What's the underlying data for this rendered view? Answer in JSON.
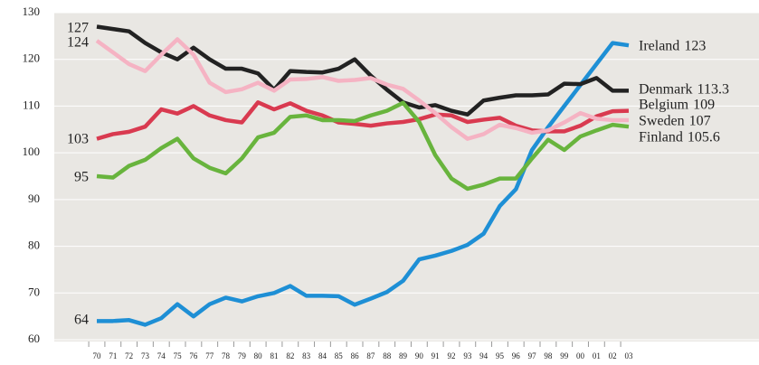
{
  "chart_data": {
    "type": "line",
    "categories": [
      "70",
      "71",
      "72",
      "73",
      "74",
      "75",
      "76",
      "77",
      "78",
      "79",
      "80",
      "81",
      "82",
      "83",
      "84",
      "85",
      "86",
      "87",
      "88",
      "89",
      "90",
      "91",
      "92",
      "93",
      "94",
      "95",
      "96",
      "97",
      "98",
      "99",
      "00",
      "01",
      "02",
      "03"
    ],
    "ylim": [
      60,
      130
    ],
    "yticks": [
      60,
      70,
      80,
      90,
      100,
      110,
      120,
      130
    ],
    "grid": true,
    "series": [
      {
        "name": "Ireland",
        "color": "#1e8fd5",
        "values": [
          64,
          64,
          64.2,
          63.2,
          64.6,
          67.6,
          65,
          67.6,
          69,
          68.2,
          69.3,
          70,
          71.5,
          69.4,
          69.4,
          69.3,
          67.5,
          68.8,
          70.2,
          72.6,
          77.2,
          78,
          79,
          80.3,
          82.7,
          88.6,
          92.2,
          100.6,
          105.5,
          110,
          114.5,
          119,
          123.5,
          123
        ]
      },
      {
        "name": "Denmark",
        "color": "#222222",
        "values": [
          127,
          126.5,
          126,
          123.5,
          121.5,
          120,
          122.5,
          120,
          118,
          118,
          117,
          113.5,
          117.5,
          117.3,
          117.2,
          118,
          120,
          116.5,
          113.5,
          110.8,
          109.7,
          110.2,
          109,
          108.2,
          111.2,
          111.8,
          112.3,
          112.3,
          112.5,
          114.8,
          114.7,
          116,
          113.3,
          113.3
        ]
      },
      {
        "name": "Belgium",
        "color": "#d93a50",
        "values": [
          103,
          104,
          104.5,
          105.6,
          109.3,
          108.4,
          110,
          108,
          107,
          106.5,
          110.8,
          109.3,
          110.6,
          109,
          108,
          106.5,
          106.2,
          105.8,
          106.3,
          106.6,
          107.2,
          108.2,
          108,
          106.6,
          107.1,
          107.5,
          105.8,
          104.8,
          104.6,
          104.6,
          105.8,
          107.8,
          108.9,
          109
        ]
      },
      {
        "name": "Sweden",
        "color": "#f5b3c3",
        "values": [
          124,
          121.5,
          119,
          117.5,
          121,
          124.3,
          121,
          115,
          113,
          113.6,
          115,
          113.3,
          115.7,
          115.8,
          116.2,
          115.4,
          115.6,
          116,
          114.6,
          113.7,
          111.2,
          108.5,
          105.5,
          103,
          104,
          106,
          105.3,
          104.3,
          104.8,
          106.5,
          108.5,
          107.3,
          107,
          107
        ]
      },
      {
        "name": "Finland",
        "color": "#68b43d",
        "values": [
          95,
          94.7,
          97.2,
          98.5,
          101,
          103,
          98.8,
          96.8,
          95.6,
          98.8,
          103.3,
          104.3,
          107.7,
          108,
          107,
          107,
          106.8,
          108,
          109,
          110.7,
          106.6,
          99.5,
          94.5,
          92.3,
          93.2,
          94.5,
          94.5,
          98.8,
          102.8,
          100.6,
          103.5,
          104.8,
          106,
          105.6
        ]
      }
    ]
  }
}
